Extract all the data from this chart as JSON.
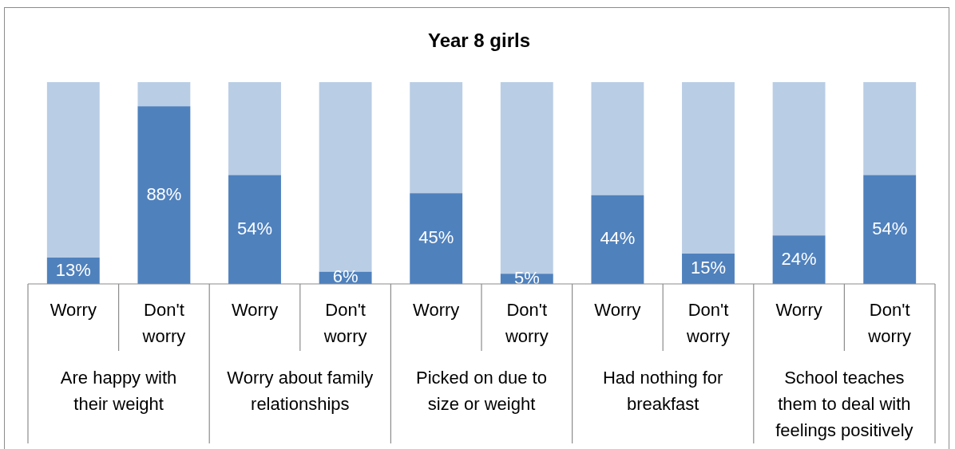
{
  "chart_data": {
    "type": "bar",
    "title": "Year 8 girls",
    "stacked": true,
    "categories": [
      "Worry",
      "Don't worry",
      "Worry",
      "Don't worry",
      "Worry",
      "Don't worry",
      "Worry",
      "Don't worry",
      "Worry",
      "Don't worry"
    ],
    "series": [
      {
        "color": "#4f81bd",
        "values": [
          13,
          88,
          54,
          6,
          45,
          5,
          44,
          15,
          24,
          54
        ],
        "value_labels": [
          "13%",
          "88%",
          "54%",
          "6%",
          "45%",
          "5%",
          "44%",
          "15%",
          "24%",
          "54%"
        ]
      },
      {
        "color": "#b9cde5",
        "values": [
          87,
          12,
          46,
          94,
          55,
          95,
          56,
          85,
          76,
          46
        ]
      }
    ],
    "ylim": [
      0,
      100
    ],
    "tick_labels": "x",
    "legend": false,
    "annotations": [
      "Are happy with their weight",
      "Worry about family relationships",
      "Picked on due to size or weight",
      "Had nothing for breakfast",
      "School teaches them to deal with feelings positively"
    ]
  }
}
